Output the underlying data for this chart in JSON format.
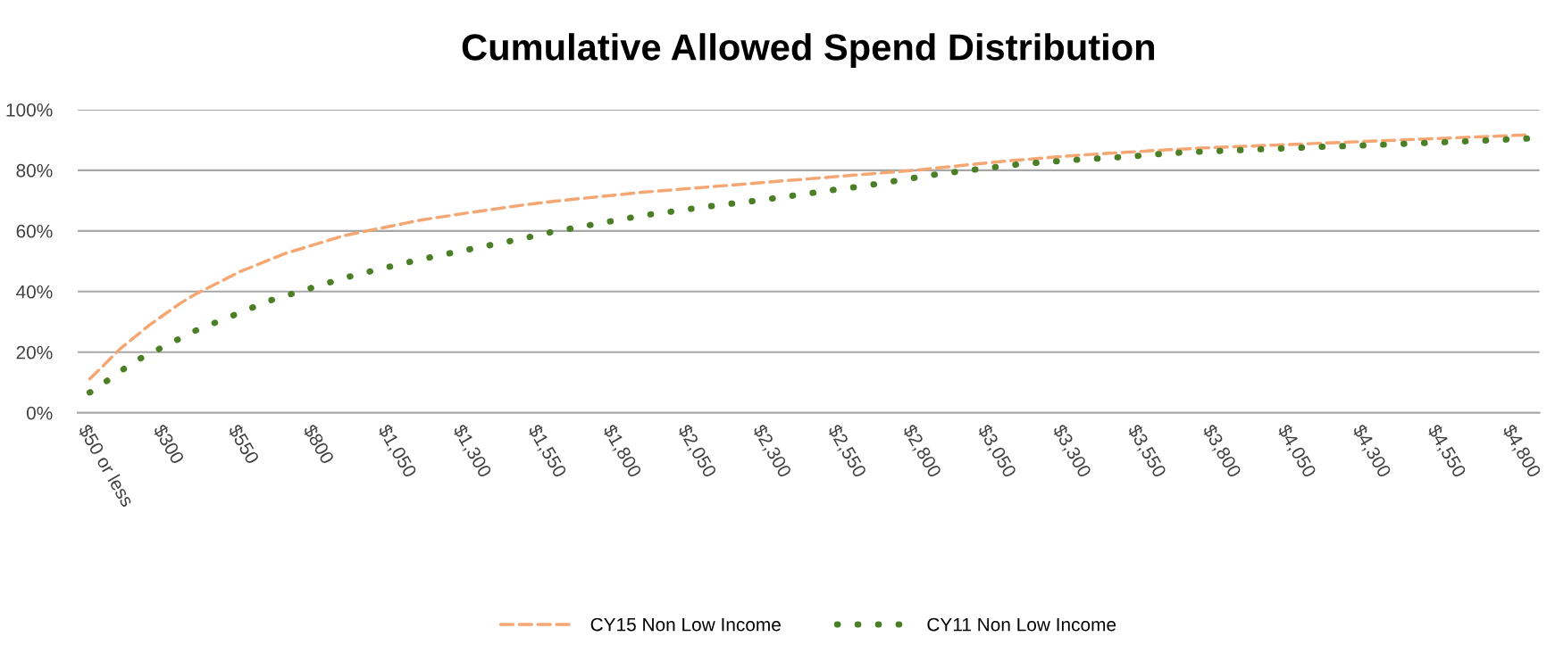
{
  "chart_data": {
    "type": "line",
    "title": "Cumulative Allowed Spend Distribution",
    "categories": [
      "$50 or less",
      null,
      null,
      null,
      null,
      "$300",
      null,
      null,
      null,
      null,
      "$550",
      null,
      null,
      null,
      null,
      "$800",
      null,
      null,
      null,
      null,
      "$1,050",
      null,
      null,
      null,
      null,
      "$1,300",
      null,
      null,
      null,
      null,
      "$1,550",
      null,
      null,
      null,
      null,
      "$1,800",
      null,
      null,
      null,
      null,
      "$2,050",
      null,
      null,
      null,
      null,
      "$2,300",
      null,
      null,
      null,
      null,
      "$2,550",
      null,
      null,
      null,
      null,
      "$2,800",
      null,
      null,
      null,
      null,
      "$3,050",
      null,
      null,
      null,
      null,
      "$3,300",
      null,
      null,
      null,
      null,
      "$3,550",
      null,
      null,
      null,
      null,
      "$3,800",
      null,
      null,
      null,
      null,
      "$4,050",
      null,
      null,
      null,
      null,
      "$4,300",
      null,
      null,
      null,
      null,
      "$4,550",
      null,
      null,
      null,
      null,
      "$4,800",
      null
    ],
    "series": [
      {
        "name": "CY15 Non Low Income",
        "color": "#f4a673",
        "line_style": "dashed",
        "values": [
          11.2,
          16,
          21,
          25,
          29,
          32.5,
          36,
          39,
          41.5,
          44,
          46.5,
          48.5,
          50.5,
          52.5,
          54,
          55.5,
          57,
          58.5,
          59.5,
          60.5,
          61.5,
          62.5,
          63.5,
          64.3,
          65,
          65.8,
          66.5,
          67.2,
          67.9,
          68.6,
          69.2,
          69.8,
          70.3,
          70.8,
          71.3,
          71.8,
          72.3,
          72.8,
          73.2,
          73.6,
          74,
          74.4,
          74.8,
          75.2,
          75.6,
          76,
          76.4,
          76.8,
          77.2,
          77.6,
          78,
          78.4,
          78.8,
          79.2,
          79.6,
          80,
          80.5,
          81,
          81.5,
          82,
          82.5,
          83,
          83.4,
          83.8,
          84.2,
          84.6,
          85,
          85.3,
          85.6,
          85.9,
          86.2,
          86.5,
          86.8,
          87,
          87.3,
          87.5,
          87.7,
          87.9,
          88.1,
          88.3,
          88.5,
          88.7,
          88.9,
          89.1,
          89.3,
          89.5,
          89.7,
          89.9,
          90.1,
          90.3,
          90.5,
          90.7,
          90.9,
          91.1,
          91.3,
          91.5,
          91.7
        ]
      },
      {
        "name": "CY11 Non Low Income",
        "color": "#4a7f26",
        "line_style": "dotted",
        "values": [
          6.7,
          10,
          13.5,
          17,
          19.5,
          22,
          24.5,
          27,
          29,
          31,
          33,
          35,
          37,
          38.5,
          40,
          41.5,
          43,
          44.5,
          45.8,
          47,
          48.2,
          49.4,
          50.5,
          51.6,
          52.6,
          53.6,
          54.6,
          55.6,
          56.6,
          57.6,
          58.8,
          59.8,
          60.7,
          61.6,
          62.5,
          63.4,
          64.3,
          65.2,
          65.8,
          66.5,
          67.2,
          67.9,
          68.5,
          69.1,
          69.7,
          70.3,
          71,
          71.7,
          72.4,
          73.1,
          73.8,
          74.4,
          75.1,
          75.9,
          76.7,
          77.5,
          78.3,
          79,
          79.6,
          80.2,
          80.8,
          81.4,
          82,
          82.4,
          82.8,
          83.2,
          83.5,
          83.8,
          84.1,
          84.4,
          84.8,
          85.2,
          85.6,
          85.9,
          86.1,
          86.3,
          86.5,
          86.7,
          86.9,
          87.1,
          87.3,
          87.5,
          87.7,
          87.9,
          88,
          88.2,
          88.4,
          88.6,
          88.8,
          89,
          89.2,
          89.4,
          89.6,
          89.8,
          90,
          90.3,
          90.5
        ]
      }
    ],
    "ylim": [
      0,
      100
    ],
    "yticks": [
      {
        "value": 0,
        "label": "0%"
      },
      {
        "value": 20,
        "label": "20%"
      },
      {
        "value": 40,
        "label": "40%"
      },
      {
        "value": 60,
        "label": "60%"
      },
      {
        "value": 80,
        "label": "80%"
      },
      {
        "value": 100,
        "label": "100%"
      }
    ],
    "grid": "y",
    "legend": "bottom"
  }
}
